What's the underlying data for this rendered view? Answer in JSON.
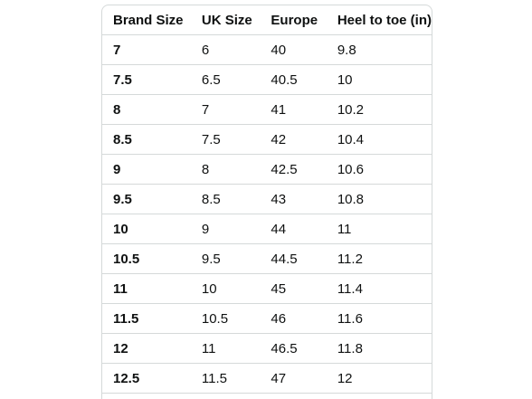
{
  "size_chart": {
    "headers": [
      "Brand Size",
      "UK Size",
      "Europe",
      "Heel to toe (in)"
    ],
    "rows": [
      [
        "7",
        "6",
        "40",
        "9.8"
      ],
      [
        "7.5",
        "6.5",
        "40.5",
        "10"
      ],
      [
        "8",
        "7",
        "41",
        "10.2"
      ],
      [
        "8.5",
        "7.5",
        "42",
        "10.4"
      ],
      [
        "9",
        "8",
        "42.5",
        "10.6"
      ],
      [
        "9.5",
        "8.5",
        "43",
        "10.8"
      ],
      [
        "10",
        "9",
        "44",
        "11"
      ],
      [
        "10.5",
        "9.5",
        "44.5",
        "11.2"
      ],
      [
        "11",
        "10",
        "45",
        "11.4"
      ],
      [
        "11.5",
        "10.5",
        "46",
        "11.6"
      ],
      [
        "12",
        "11",
        "46.5",
        "11.8"
      ],
      [
        "12.5",
        "11.5",
        "47",
        "12"
      ]
    ]
  }
}
